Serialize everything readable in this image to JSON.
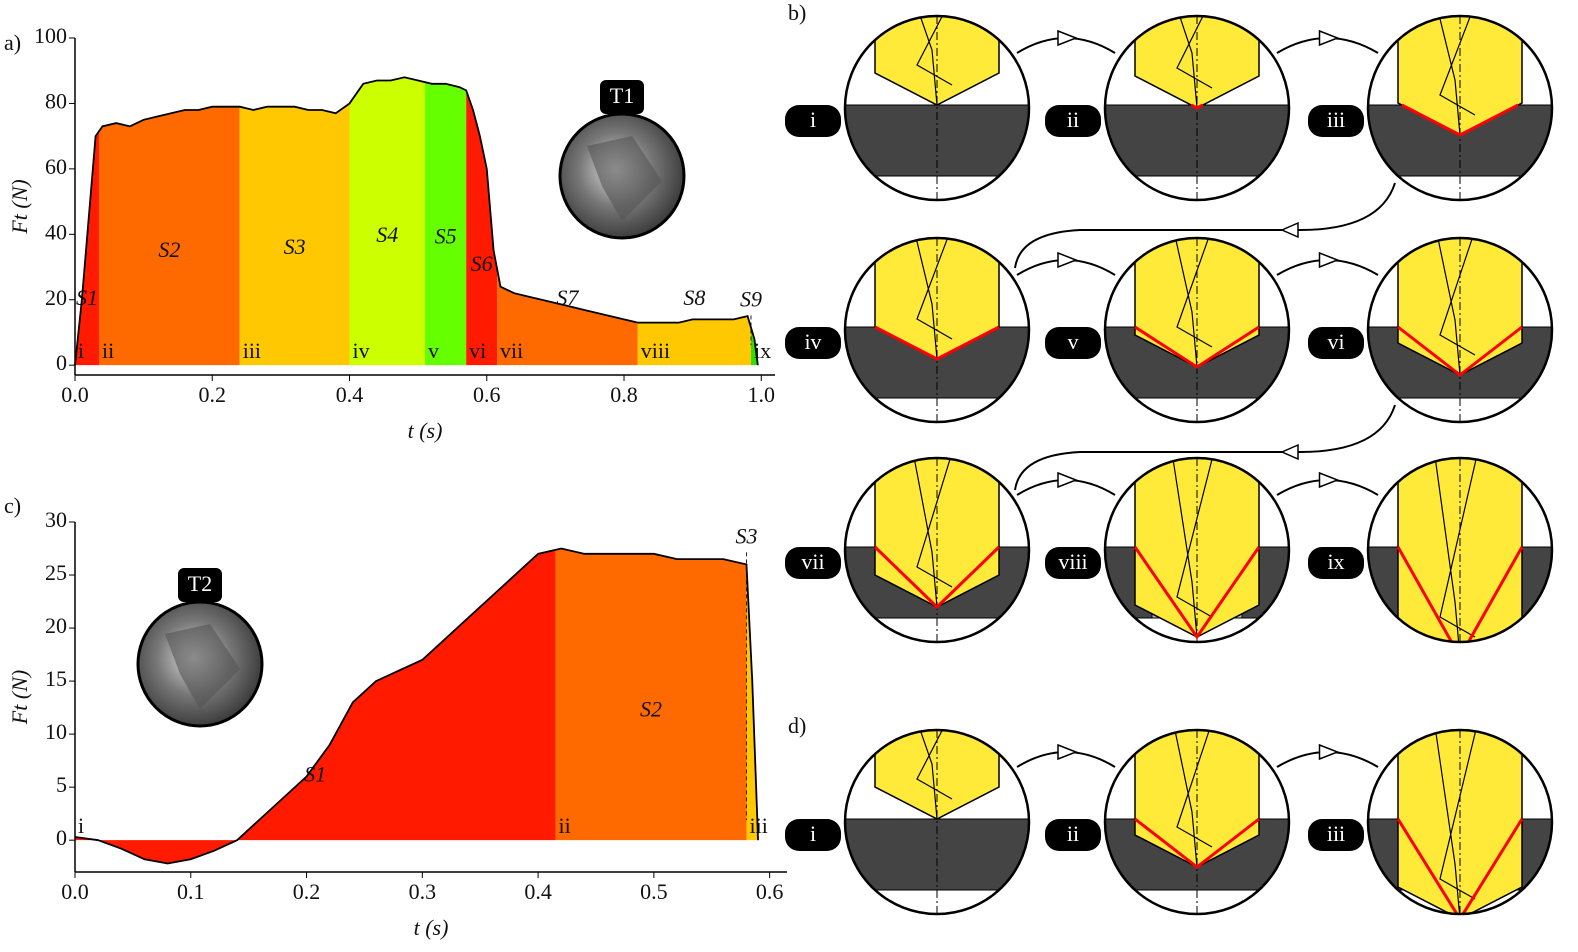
{
  "panels": {
    "a": "a)",
    "b": "b)",
    "c": "c)",
    "d": "d)"
  },
  "chart_data": [
    {
      "type": "area",
      "xlabel": "t (s)",
      "ylabel": "Ft (N)",
      "inset": "T1",
      "x": [
        0,
        0.01,
        0.02,
        0.03,
        0.04,
        0.06,
        0.08,
        0.1,
        0.12,
        0.14,
        0.16,
        0.18,
        0.2,
        0.22,
        0.24,
        0.26,
        0.28,
        0.3,
        0.32,
        0.34,
        0.36,
        0.38,
        0.4,
        0.42,
        0.44,
        0.46,
        0.48,
        0.5,
        0.52,
        0.54,
        0.56,
        0.57,
        0.58,
        0.59,
        0.6,
        0.61,
        0.62,
        0.64,
        0.66,
        0.68,
        0.7,
        0.72,
        0.74,
        0.76,
        0.78,
        0.8,
        0.82,
        0.84,
        0.86,
        0.88,
        0.9,
        0.92,
        0.94,
        0.96,
        0.98,
        0.99,
        0.995
      ],
      "values": [
        0,
        20,
        45,
        70,
        73,
        74,
        73,
        75,
        76,
        77,
        78,
        78,
        79,
        79,
        79,
        78,
        79,
        79,
        79,
        78,
        78,
        77,
        80,
        86,
        87,
        87,
        88,
        87,
        86,
        86,
        85,
        84,
        78,
        70,
        60,
        35,
        24,
        22,
        21,
        20,
        19,
        18,
        17,
        16,
        15,
        14,
        13,
        13,
        13,
        13,
        14,
        14,
        14,
        14,
        15,
        8,
        0
      ],
      "xlim": [
        0,
        1.02
      ],
      "ylim": [
        -3,
        100
      ],
      "xticks": [
        {
          "value": 0,
          "label": "0.0"
        },
        0.2,
        0.4,
        0.6,
        0.8,
        {
          "value": 1,
          "label": "1.0"
        }
      ],
      "yticks": [
        0,
        20,
        40,
        60,
        80,
        100
      ],
      "segments": [
        {
          "label": "S1",
          "marker": "i",
          "start": 0,
          "end": 0.035,
          "color": "#ff1a00"
        },
        {
          "label": "S2",
          "marker": "ii",
          "start": 0.035,
          "end": 0.24,
          "color": "#ff6a00"
        },
        {
          "label": "S3",
          "marker": "iii",
          "start": 0.24,
          "end": 0.4,
          "color": "#ffc800"
        },
        {
          "label": "S4",
          "marker": "iv",
          "start": 0.4,
          "end": 0.51,
          "color": "#ccff00"
        },
        {
          "label": "S5",
          "marker": "v",
          "start": 0.51,
          "end": 0.57,
          "color": "#66ff00"
        },
        {
          "label": "S6",
          "marker": "vi",
          "start": 0.57,
          "end": 0.615,
          "color": "#ff1a00"
        },
        {
          "label": "S7",
          "marker": "vii",
          "start": 0.615,
          "end": 0.82,
          "color": "#ff6a00"
        },
        {
          "label": "S8",
          "marker": "viii",
          "start": 0.82,
          "end": 0.985,
          "color": "#ffc800"
        },
        {
          "label": "S9",
          "marker": "ix",
          "start": 0.985,
          "end": 0.995,
          "color": "#33dd00"
        }
      ]
    },
    {
      "type": "area",
      "xlabel": "t (s)",
      "ylabel": "Ft (N)",
      "inset": "T2",
      "x": [
        0,
        0.02,
        0.04,
        0.06,
        0.08,
        0.1,
        0.12,
        0.14,
        0.15,
        0.18,
        0.2,
        0.22,
        0.24,
        0.26,
        0.28,
        0.3,
        0.32,
        0.34,
        0.36,
        0.38,
        0.4,
        0.42,
        0.44,
        0.46,
        0.48,
        0.5,
        0.52,
        0.54,
        0.56,
        0.58,
        0.585,
        0.59
      ],
      "values": [
        0.3,
        0,
        -0.8,
        -1.8,
        -2.2,
        -1.8,
        -1,
        0,
        1,
        4,
        6,
        9,
        13,
        15,
        16,
        17,
        19,
        21,
        23,
        25,
        27,
        27.5,
        27,
        27,
        27,
        27,
        26.5,
        26.5,
        26.5,
        26,
        15,
        0
      ],
      "xlim": [
        0,
        0.615
      ],
      "ylim": [
        -3,
        30
      ],
      "xticks": [
        {
          "value": 0,
          "label": "0.0"
        },
        0.1,
        0.2,
        0.3,
        0.4,
        0.5,
        0.6
      ],
      "yticks": [
        0,
        5,
        10,
        15,
        20,
        25,
        30
      ],
      "segments": [
        {
          "label": "S1",
          "marker": "i",
          "start": 0,
          "end": 0.415,
          "color": "#ff1a00"
        },
        {
          "label": "S2",
          "marker": "ii",
          "start": 0.415,
          "end": 0.58,
          "color": "#ff6a00"
        },
        {
          "label": "S3",
          "marker": "iii",
          "start": 0.58,
          "end": 0.59,
          "color": "#ffc800"
        }
      ]
    }
  ],
  "diagrams": {
    "b": {
      "stages": [
        "i",
        "ii",
        "iii",
        "iv",
        "v",
        "vi",
        "vii",
        "viii",
        "ix"
      ]
    },
    "d": {
      "stages": [
        "i",
        "ii",
        "iii"
      ]
    }
  }
}
